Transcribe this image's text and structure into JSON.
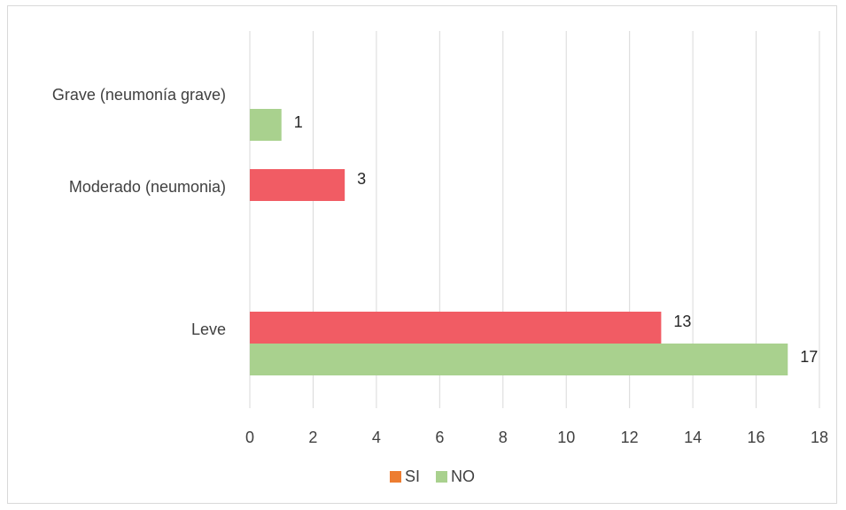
{
  "chart_data": {
    "type": "bar",
    "orientation": "horizontal",
    "categories": [
      "Grave (neumonía grave)",
      "Moderado (neumonia)",
      "Leve"
    ],
    "series": [
      {
        "name": "SI",
        "color": "#f15c64",
        "legend_color": "#ed7d31",
        "values": [
          null,
          3,
          13
        ]
      },
      {
        "name": "NO",
        "color": "#a9d18e",
        "legend_color": "#a9d18e",
        "values": [
          1,
          null,
          17
        ]
      }
    ],
    "xlim": [
      0,
      18
    ],
    "x_ticks": [
      "0",
      "2",
      "4",
      "6",
      "8",
      "10",
      "12",
      "14",
      "16",
      "18"
    ],
    "grid": "vertical",
    "legend_position": "bottom",
    "title": "",
    "xlabel": "",
    "ylabel": ""
  }
}
